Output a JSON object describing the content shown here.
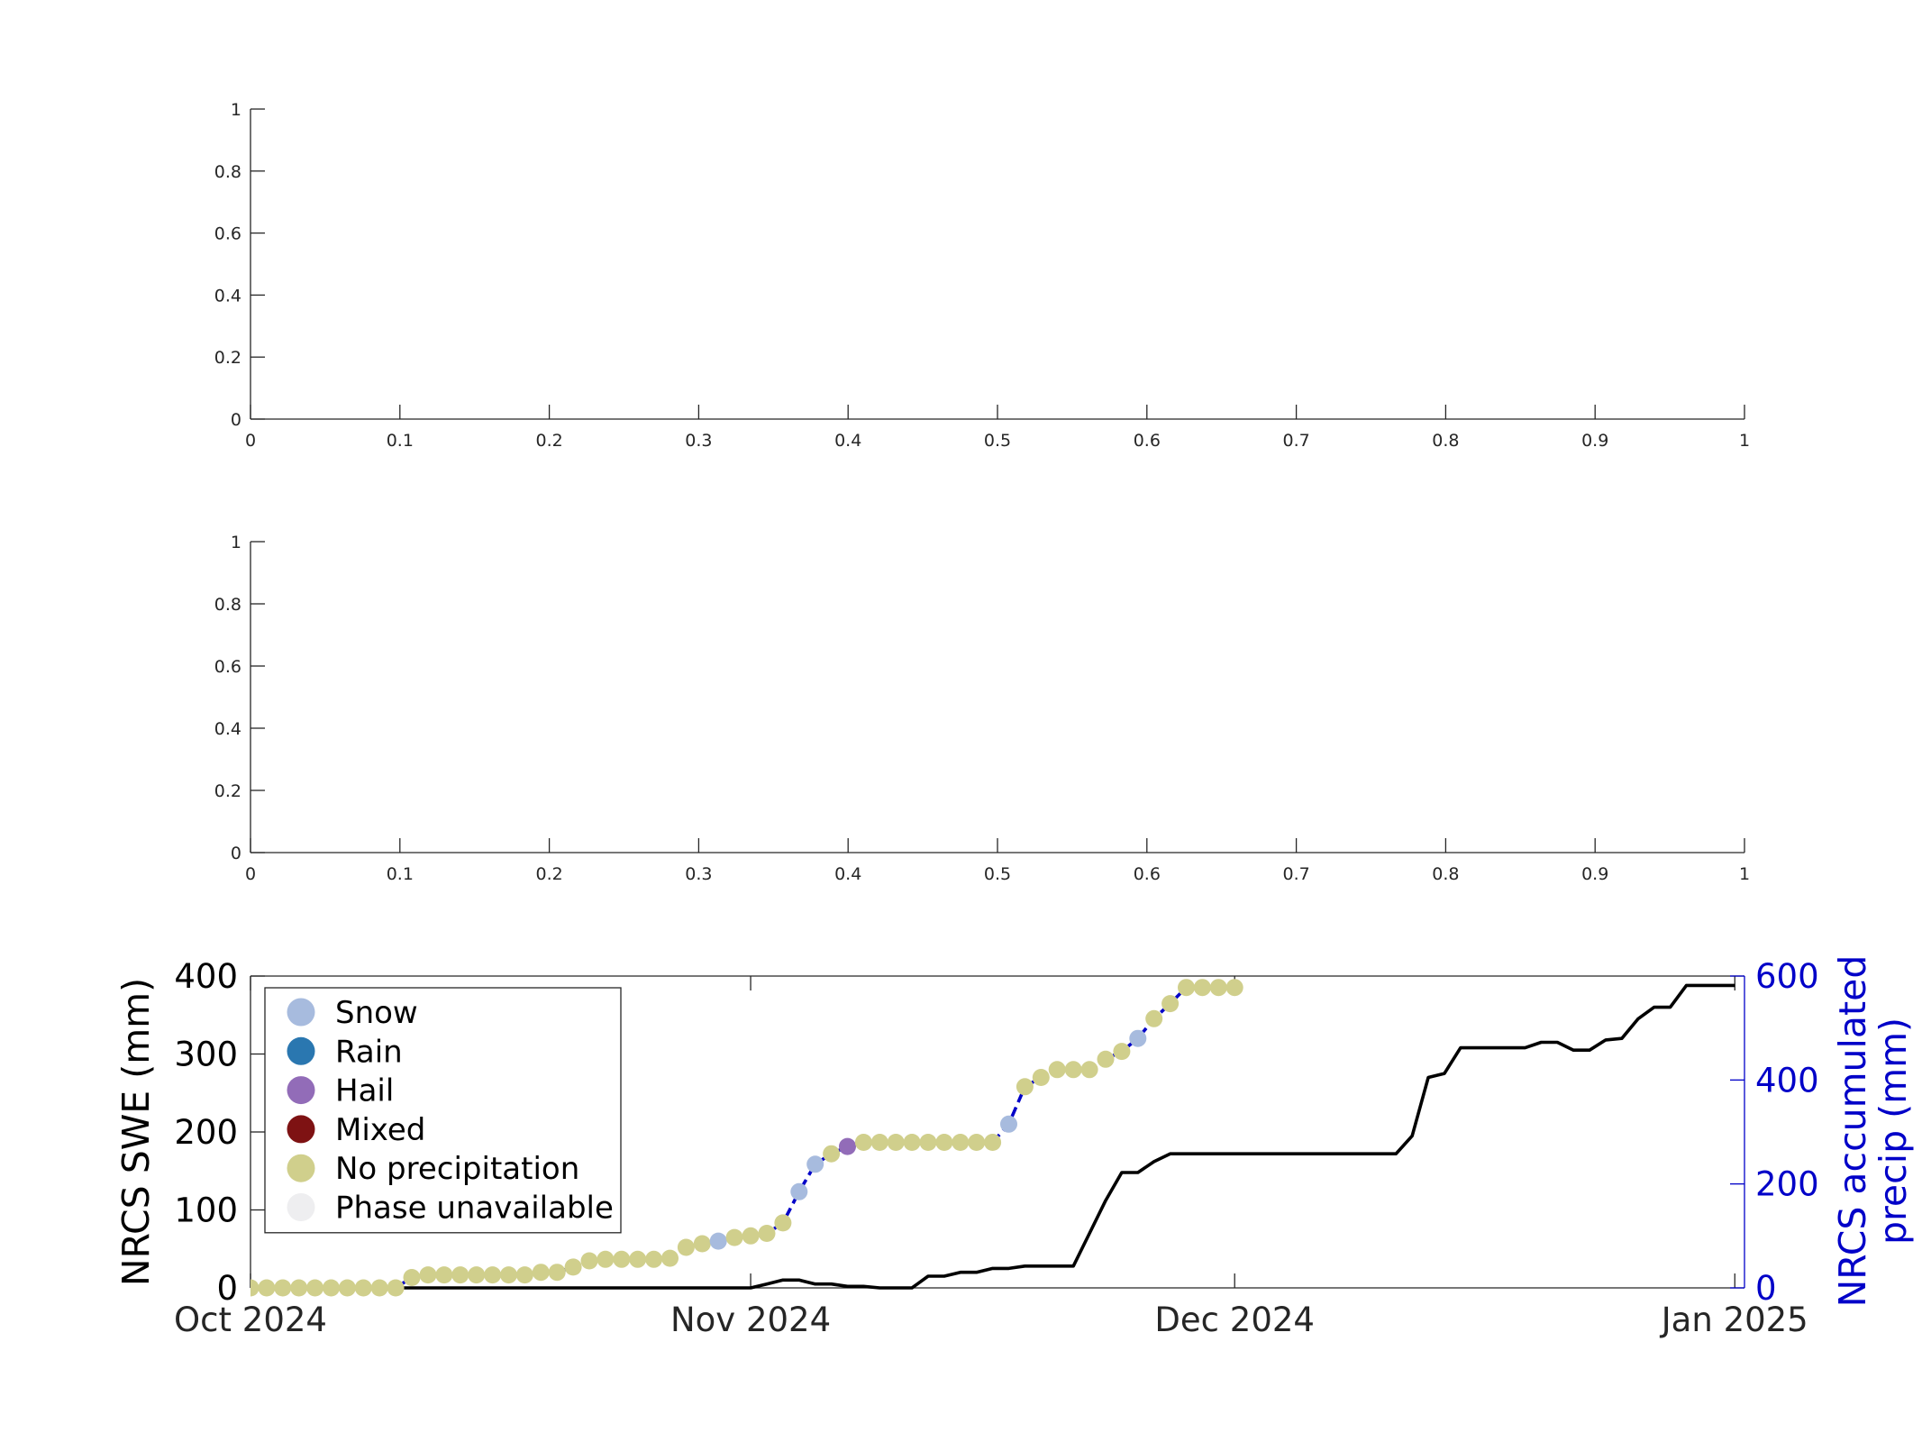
{
  "chart_data": [
    {
      "type": "line",
      "title": "",
      "xlabel": "",
      "ylabel": "",
      "xlim": [
        0,
        1
      ],
      "ylim": [
        0,
        1
      ],
      "xticks": [
        "0",
        "0.1",
        "0.2",
        "0.3",
        "0.4",
        "0.5",
        "0.6",
        "0.7",
        "0.8",
        "0.9",
        "1"
      ],
      "yticks": [
        "0",
        "0.2",
        "0.4",
        "0.6",
        "0.8",
        "1"
      ],
      "series": []
    },
    {
      "type": "line",
      "title": "",
      "xlabel": "",
      "ylabel": "",
      "xlim": [
        0,
        1
      ],
      "ylim": [
        0,
        1
      ],
      "xticks": [
        "0",
        "0.1",
        "0.2",
        "0.3",
        "0.4",
        "0.5",
        "0.6",
        "0.7",
        "0.8",
        "0.9",
        "1"
      ],
      "yticks": [
        "0",
        "0.2",
        "0.4",
        "0.6",
        "0.8",
        "1"
      ],
      "series": []
    },
    {
      "type": "line",
      "title": "",
      "xlabel": "",
      "ylabel": "NRCS SWE (mm)",
      "y2label": [
        "NRCS accumulated",
        "precip (mm)"
      ],
      "xlim": [
        "2024-10-01",
        "2025-01-01"
      ],
      "ylim": [
        0,
        400
      ],
      "y2lim": [
        0,
        600
      ],
      "xticks": [
        {
          "date": "2024-10-01",
          "label": "Oct 2024"
        },
        {
          "date": "2024-11-01",
          "label": "Nov 2024"
        },
        {
          "date": "2024-12-01",
          "label": "Dec 2024"
        },
        {
          "date": "2025-01-01",
          "label": "Jan 2025"
        }
      ],
      "yticks": [
        "0",
        "100",
        "200",
        "300",
        "400"
      ],
      "y2ticks": [
        "0",
        "200",
        "400",
        "600"
      ],
      "legend_position": "upper-left",
      "legend": [
        {
          "label": "Snow",
          "color": "#A7BBDE"
        },
        {
          "label": "Rain",
          "color": "#2A77B0"
        },
        {
          "label": "Hail",
          "color": "#926CB8"
        },
        {
          "label": "Mixed",
          "color": "#7E1213"
        },
        {
          "label": "No precipitation",
          "color": "#D0CF8C"
        },
        {
          "label": "Phase unavailable",
          "color": "#EEEEF0"
        }
      ],
      "swe_series": {
        "axis": "left",
        "color": "#000000",
        "points": [
          [
            "2024-10-01",
            0
          ],
          [
            "2024-11-01",
            0
          ],
          [
            "2024-11-02",
            5
          ],
          [
            "2024-11-03",
            10
          ],
          [
            "2024-11-04",
            10
          ],
          [
            "2024-11-05",
            5
          ],
          [
            "2024-11-06",
            5
          ],
          [
            "2024-11-07",
            2
          ],
          [
            "2024-11-08",
            2
          ],
          [
            "2024-11-09",
            0
          ],
          [
            "2024-11-10",
            0
          ],
          [
            "2024-11-11",
            0
          ],
          [
            "2024-11-12",
            15
          ],
          [
            "2024-11-13",
            15
          ],
          [
            "2024-11-14",
            20
          ],
          [
            "2024-11-15",
            20
          ],
          [
            "2024-11-16",
            25
          ],
          [
            "2024-11-17",
            25
          ],
          [
            "2024-11-18",
            28
          ],
          [
            "2024-11-19",
            28
          ],
          [
            "2024-11-20",
            28
          ],
          [
            "2024-11-21",
            28
          ],
          [
            "2024-11-22",
            70
          ],
          [
            "2024-11-23",
            112
          ],
          [
            "2024-11-24",
            148
          ],
          [
            "2024-11-25",
            148
          ],
          [
            "2024-11-26",
            162
          ],
          [
            "2024-11-27",
            172
          ],
          [
            "2024-12-11",
            172
          ],
          [
            "2024-12-12",
            195
          ],
          [
            "2024-12-13",
            270
          ],
          [
            "2024-12-14",
            275
          ],
          [
            "2024-12-15",
            308
          ],
          [
            "2024-12-18",
            308
          ],
          [
            "2024-12-19",
            308
          ],
          [
            "2024-12-20",
            315
          ],
          [
            "2024-12-21",
            315
          ],
          [
            "2024-12-22",
            305
          ],
          [
            "2024-12-23",
            305
          ],
          [
            "2024-12-24",
            318
          ],
          [
            "2024-12-25",
            320
          ],
          [
            "2024-12-26",
            345
          ],
          [
            "2024-12-27",
            360
          ],
          [
            "2024-12-28",
            360
          ],
          [
            "2024-12-29",
            388
          ],
          [
            "2025-01-01",
            388
          ]
        ]
      },
      "precip_series": {
        "axis": "right",
        "color": "#0000C8",
        "points": [
          [
            "2024-10-01",
            0,
            "No precipitation"
          ],
          [
            "2024-10-02",
            0,
            "No precipitation"
          ],
          [
            "2024-10-03",
            0,
            "No precipitation"
          ],
          [
            "2024-10-04",
            0,
            "No precipitation"
          ],
          [
            "2024-10-05",
            0,
            "No precipitation"
          ],
          [
            "2024-10-06",
            0,
            "No precipitation"
          ],
          [
            "2024-10-07",
            0,
            "No precipitation"
          ],
          [
            "2024-10-08",
            0,
            "No precipitation"
          ],
          [
            "2024-10-09",
            0,
            "No precipitation"
          ],
          [
            "2024-10-10",
            0,
            "No precipitation"
          ],
          [
            "2024-10-11",
            20,
            "No precipitation"
          ],
          [
            "2024-10-12",
            25,
            "No precipitation"
          ],
          [
            "2024-10-13",
            25,
            "No precipitation"
          ],
          [
            "2024-10-14",
            25,
            "No precipitation"
          ],
          [
            "2024-10-15",
            25,
            "No precipitation"
          ],
          [
            "2024-10-16",
            25,
            "No precipitation"
          ],
          [
            "2024-10-17",
            25,
            "No precipitation"
          ],
          [
            "2024-10-18",
            25,
            "No precipitation"
          ],
          [
            "2024-10-19",
            30,
            "No precipitation"
          ],
          [
            "2024-10-20",
            30,
            "No precipitation"
          ],
          [
            "2024-10-21",
            40,
            "No precipitation"
          ],
          [
            "2024-10-22",
            52,
            "No precipitation"
          ],
          [
            "2024-10-23",
            55,
            "No precipitation"
          ],
          [
            "2024-10-24",
            55,
            "No precipitation"
          ],
          [
            "2024-10-25",
            55,
            "No precipitation"
          ],
          [
            "2024-10-26",
            55,
            "No precipitation"
          ],
          [
            "2024-10-27",
            57,
            "No precipitation"
          ],
          [
            "2024-10-28",
            78,
            "No precipitation"
          ],
          [
            "2024-10-29",
            85,
            "No precipitation"
          ],
          [
            "2024-10-30",
            90,
            "Snow"
          ],
          [
            "2024-10-31",
            97,
            "No precipitation"
          ],
          [
            "2024-11-01",
            100,
            "No precipitation"
          ],
          [
            "2024-11-02",
            105,
            "No precipitation"
          ],
          [
            "2024-11-03",
            125,
            "No precipitation"
          ],
          [
            "2024-11-04",
            185,
            "Snow"
          ],
          [
            "2024-11-05",
            238,
            "Snow"
          ],
          [
            "2024-11-06",
            258,
            "No precipitation"
          ],
          [
            "2024-11-07",
            272,
            "Hail"
          ],
          [
            "2024-11-08",
            280,
            "No precipitation"
          ],
          [
            "2024-11-09",
            280,
            "No precipitation"
          ],
          [
            "2024-11-10",
            280,
            "No precipitation"
          ],
          [
            "2024-11-11",
            280,
            "No precipitation"
          ],
          [
            "2024-11-12",
            280,
            "No precipitation"
          ],
          [
            "2024-11-13",
            280,
            "No precipitation"
          ],
          [
            "2024-11-14",
            280,
            "No precipitation"
          ],
          [
            "2024-11-15",
            280,
            "No precipitation"
          ],
          [
            "2024-11-16",
            280,
            "No precipitation"
          ],
          [
            "2024-11-17",
            315,
            "Snow"
          ],
          [
            "2024-11-18",
            387,
            "No precipitation"
          ],
          [
            "2024-11-19",
            405,
            "No precipitation"
          ],
          [
            "2024-11-20",
            420,
            "No precipitation"
          ],
          [
            "2024-11-21",
            420,
            "No precipitation"
          ],
          [
            "2024-11-22",
            420,
            "No precipitation"
          ],
          [
            "2024-11-23",
            440,
            "No precipitation"
          ],
          [
            "2024-11-24",
            455,
            "No precipitation"
          ],
          [
            "2024-11-25",
            480,
            "Snow"
          ],
          [
            "2024-11-26",
            518,
            "No precipitation"
          ],
          [
            "2024-11-27",
            547,
            "No precipitation"
          ],
          [
            "2024-11-28",
            578,
            "No precipitation"
          ],
          [
            "2024-11-29",
            578,
            "No precipitation"
          ],
          [
            "2024-11-30",
            578,
            "No precipitation"
          ],
          [
            "2024-12-01",
            578,
            "No precipitation"
          ]
        ]
      }
    }
  ]
}
